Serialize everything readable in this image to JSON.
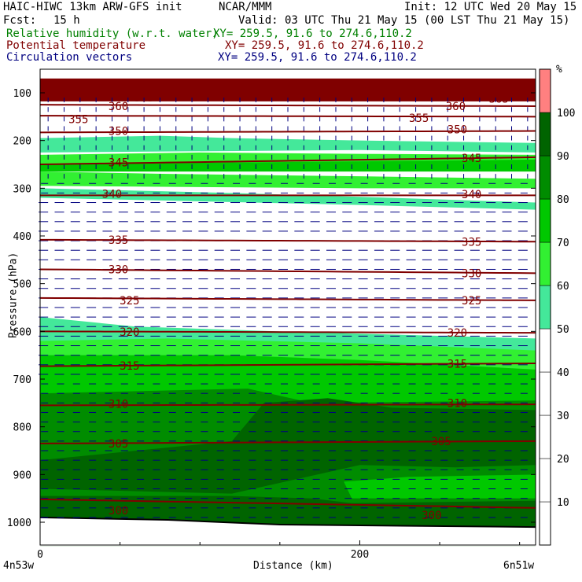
{
  "header": {
    "model": "HAIC-HIWC 13km ARW-GFS init",
    "org": "NCAR/MMM",
    "init": "Init: 12 UTC Wed 20 May 15",
    "fcst_label": "Fcst:",
    "fcst_value": "15 h",
    "valid": "Valid: 03 UTC Thu 21 May 15 (00 LST Thu 21 May 15)",
    "fields": [
      {
        "name": "Relative humidity (w.r.t. water)",
        "xy": "XY= 259.5, 91.6 to 274.6,110.2",
        "color": "#008000"
      },
      {
        "name": "Potential temperature",
        "xy": "XY= 259.5, 91.6 to 274.6,110.2",
        "color": "#800000"
      },
      {
        "name": "Circulation vectors",
        "xy": "XY= 259.5, 91.6 to 274.6,110.2",
        "color": "#000080"
      }
    ]
  },
  "axes": {
    "ylabel": "Pressure (hPa)",
    "xlabel": "Distance (km)",
    "left_end": "4n53w",
    "right_end": "6n51w",
    "y_ticks": [
      "100",
      "200",
      "300",
      "400",
      "500",
      "600",
      "700",
      "800",
      "900",
      "1000"
    ],
    "x_ticks": [
      "0",
      "200"
    ]
  },
  "colorbar": {
    "unit": "%",
    "labels": [
      "10",
      "20",
      "30",
      "40",
      "50",
      "60",
      "70",
      "80",
      "90",
      "100"
    ],
    "colors": [
      "#ffffff",
      "#ffffff",
      "#ffffff",
      "#ffffff",
      "#ffffff",
      "#44e89a",
      "#32f032",
      "#00c800",
      "#008c00",
      "#006400",
      "#ff8080"
    ],
    "levels": [
      0,
      10,
      20,
      30,
      40,
      50,
      60,
      70,
      80,
      90,
      100,
      110
    ]
  },
  "chart_data": {
    "type": "cross-section",
    "x_unit": "km",
    "y_unit": "hPa",
    "xlim": [
      0,
      310
    ],
    "ylim": [
      1050,
      70
    ],
    "theta_unit": "K",
    "theta_contours": [
      {
        "value": 365,
        "p_left": 100,
        "p_right": 100,
        "labels": [
          {
            "text": "365",
            "x": 65,
            "p": 110
          },
          {
            "text": "365",
            "x": 287,
            "p": 112
          }
        ]
      },
      {
        "value": 360,
        "p_left": 125,
        "p_right": 128,
        "labels": [
          {
            "text": "360",
            "x": 49,
            "p": 128
          },
          {
            "text": "360",
            "x": 260,
            "p": 128
          }
        ]
      },
      {
        "value": 355,
        "p_left": 148,
        "p_right": 150,
        "labels": [
          {
            "text": "355",
            "x": 24,
            "p": 155
          },
          {
            "text": "355",
            "x": 237,
            "p": 153
          }
        ]
      },
      {
        "value": 350,
        "p_left": 183,
        "p_right": 180,
        "labels": [
          {
            "text": "350",
            "x": 49,
            "p": 180
          },
          {
            "text": "350",
            "x": 261,
            "p": 177
          }
        ]
      },
      {
        "value": 345,
        "p_left": 250,
        "p_right": 235,
        "labels": [
          {
            "text": "345",
            "x": 49,
            "p": 246
          },
          {
            "text": "345",
            "x": 270,
            "p": 237
          }
        ]
      },
      {
        "value": 340,
        "p_left": 315,
        "p_right": 315,
        "labels": [
          {
            "text": "340",
            "x": 45,
            "p": 312
          },
          {
            "text": "340",
            "x": 270,
            "p": 313
          }
        ]
      },
      {
        "value": 335,
        "p_left": 408,
        "p_right": 412,
        "labels": [
          {
            "text": "335",
            "x": 49,
            "p": 408
          },
          {
            "text": "335",
            "x": 270,
            "p": 412
          }
        ]
      },
      {
        "value": 330,
        "p_left": 470,
        "p_right": 478,
        "labels": [
          {
            "text": "330",
            "x": 49,
            "p": 470
          },
          {
            "text": "330",
            "x": 270,
            "p": 478
          }
        ]
      },
      {
        "value": 325,
        "p_left": 530,
        "p_right": 535,
        "labels": [
          {
            "text": "325",
            "x": 56,
            "p": 535
          },
          {
            "text": "325",
            "x": 270,
            "p": 535
          }
        ]
      },
      {
        "value": 320,
        "p_left": 600,
        "p_right": 603,
        "labels": [
          {
            "text": "320",
            "x": 56,
            "p": 601
          },
          {
            "text": "320",
            "x": 261,
            "p": 603
          }
        ]
      },
      {
        "value": 315,
        "p_left": 673,
        "p_right": 667,
        "labels": [
          {
            "text": "315",
            "x": 56,
            "p": 672
          },
          {
            "text": "315",
            "x": 261,
            "p": 668
          }
        ]
      },
      {
        "value": 310,
        "p_left": 755,
        "p_right": 753,
        "labels": [
          {
            "text": "310",
            "x": 49,
            "p": 752
          },
          {
            "text": "310",
            "x": 261,
            "p": 750
          }
        ]
      },
      {
        "value": 305,
        "p_left": 835,
        "p_right": 830,
        "labels": [
          {
            "text": "305",
            "x": 49,
            "p": 835
          },
          {
            "text": "305",
            "x": 251,
            "p": 830
          }
        ]
      },
      {
        "value": 300,
        "p_left": 952,
        "p_right": 970,
        "labels": [
          {
            "text": "300",
            "x": 49,
            "p": 975
          },
          {
            "text": "300",
            "x": 245,
            "p": 985
          }
        ]
      }
    ],
    "rh_regions": [
      {
        "rh_band": "90-100",
        "layer": "upper",
        "p_range": [
          70,
          115
        ]
      },
      {
        "rh_band": "70-90",
        "layer": "upper-mid",
        "p_range": [
          200,
          320
        ]
      },
      {
        "rh_band": "50-60",
        "layer": "mid",
        "p_range": [
          320,
          345
        ]
      },
      {
        "rh_band": "50-70",
        "layer": "lower-mid",
        "p_range": [
          560,
          700
        ]
      },
      {
        "rh_band": "70-90",
        "layer": "low",
        "p_range": [
          700,
          1000
        ]
      }
    ],
    "vectors": "mostly westward (right to left) flow at most levels"
  }
}
